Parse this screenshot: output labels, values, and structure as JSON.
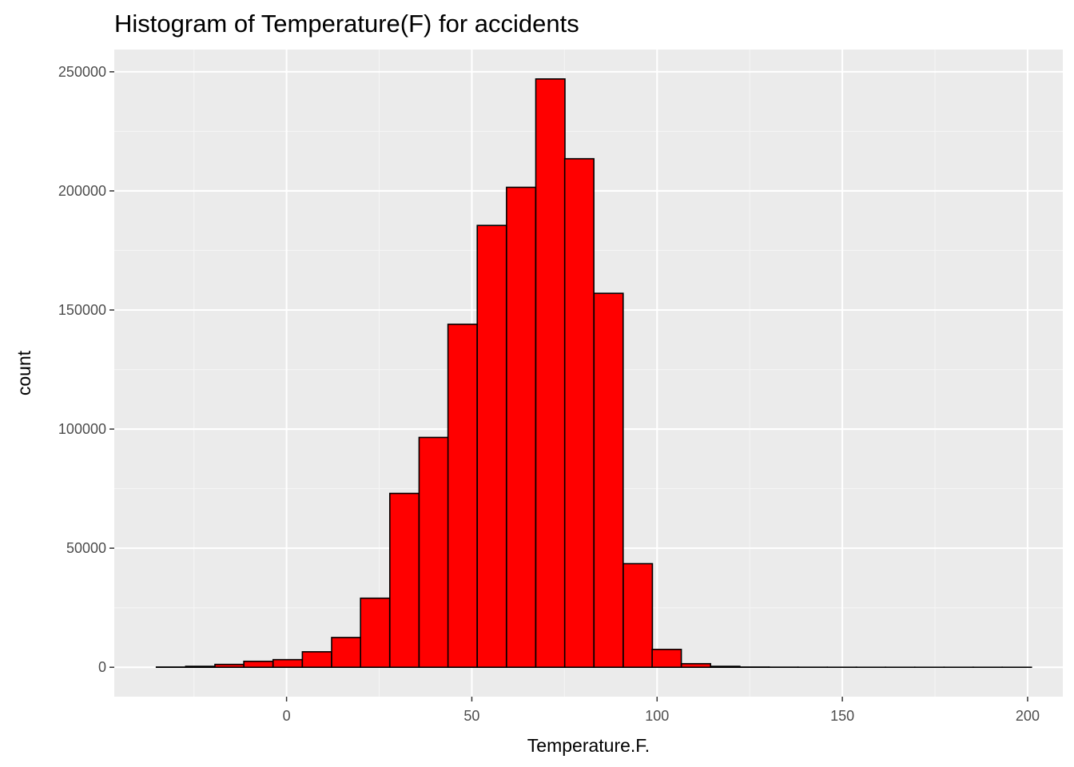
{
  "colors": {
    "panel_background": "#ebebeb",
    "grid_major": "#ffffff",
    "grid_minor": "#f5f5f5",
    "bar_fill": "#ff0000",
    "bar_outline": "#000000",
    "tick_text": "#4d4d4d",
    "tick_mark": "#333333"
  },
  "chart_data": {
    "type": "bar",
    "subtype": "histogram",
    "title": "Histogram of Temperature(F) for accidents",
    "xlabel": "Temperature.F.",
    "ylabel": "count",
    "xlim": [
      -46.5,
      209.5
    ],
    "ylim": [
      -12350,
      259350
    ],
    "x_ticks": [
      0,
      50,
      100,
      150,
      200
    ],
    "x_tick_labels": [
      "0",
      "50",
      "100",
      "150",
      "200"
    ],
    "y_ticks": [
      0,
      50000,
      100000,
      150000,
      200000,
      250000
    ],
    "y_tick_labels": [
      "0",
      "50000",
      "100000",
      "150000",
      "200000",
      "250000"
    ],
    "grid": true,
    "legend": "none",
    "bin_width": 7.87,
    "bin_centers": [
      -31.2,
      -23.3,
      -15.4,
      -7.6,
      0.3,
      8.2,
      16.1,
      23.9,
      31.8,
      39.7,
      47.5,
      55.4,
      63.3,
      71.2,
      79.0,
      86.9,
      94.8,
      102.6,
      110.5,
      118.4,
      126.3,
      134.1,
      142.0,
      149.9,
      157.7,
      165.6,
      173.5,
      181.4,
      189.2,
      197.1
    ],
    "values": [
      100,
      400,
      1200,
      2500,
      3200,
      6500,
      12500,
      29000,
      73000,
      96500,
      144000,
      185500,
      201500,
      247000,
      213500,
      157000,
      43500,
      7500,
      1500,
      400,
      100,
      50,
      30,
      20,
      10,
      10,
      10,
      10,
      10,
      10
    ]
  }
}
